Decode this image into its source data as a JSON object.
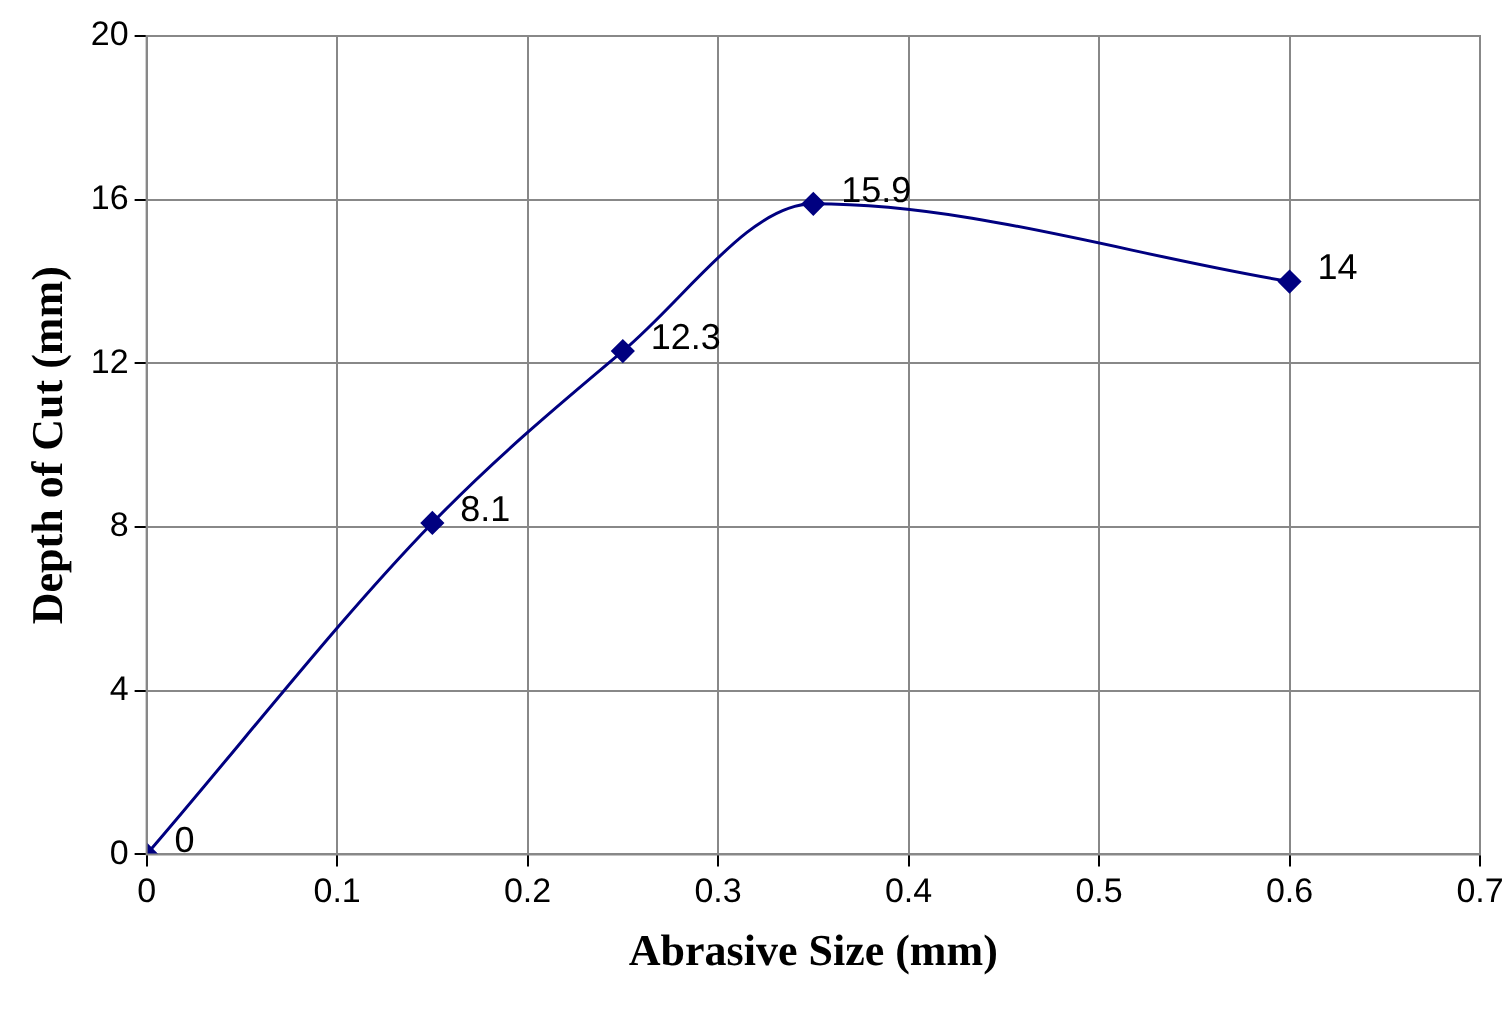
{
  "chart_data": {
    "type": "line",
    "xlabel": "Abrasive Size (mm)",
    "ylabel": "Depth of Cut (mm)",
    "x": [
      0,
      0.15,
      0.25,
      0.35,
      0.6
    ],
    "series": [
      {
        "color": "#000080",
        "values": [
          0,
          8.1,
          12.3,
          15.9,
          14
        ]
      }
    ],
    "xlim": [
      0,
      0.7
    ],
    "xticks": [
      0,
      0.1,
      0.2,
      0.3,
      0.4,
      0.5,
      0.6,
      0.7
    ],
    "ylim": [
      0,
      20
    ],
    "yticks": [
      0,
      4,
      8,
      12,
      16,
      20
    ],
    "grid": true,
    "legend": false,
    "marker": "diamond",
    "line_style": "solid",
    "data_labels": true
  }
}
